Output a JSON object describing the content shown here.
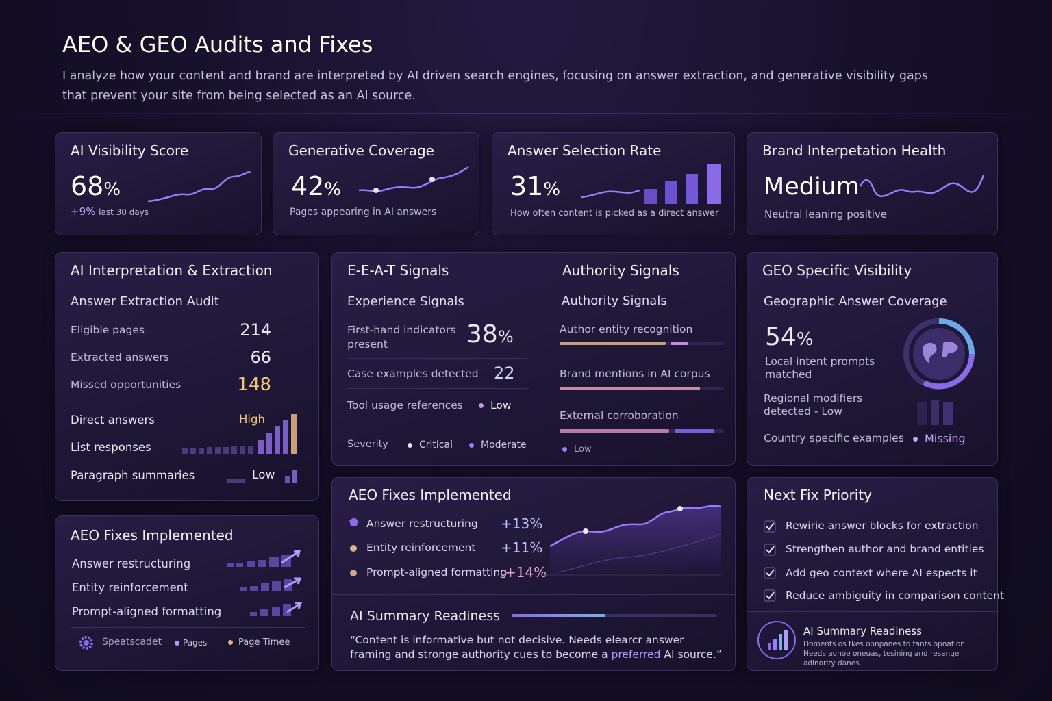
{
  "header": {
    "title": "AEO & GEO Audits and Fixes",
    "description": "I analyze how your content and brand are interpreted by AI driven search engines, focusing on answer extraction, and generative visibility gaps that prevent your site from being selected as an AI source."
  },
  "kpis": [
    {
      "title": "AI Visibility Score",
      "value": "68",
      "unit": "%",
      "change": "+9%",
      "caption": "last 30 days"
    },
    {
      "title": "Generative Coverage",
      "value": "42",
      "unit": "%",
      "caption": "Pages appearing in AI answers"
    },
    {
      "title": "Answer Selection Rate",
      "value": "31",
      "unit": "%",
      "caption": "How often content is picked as a direct answer"
    },
    {
      "title": "Brand Interpetation Health",
      "value": "Medium",
      "caption": "Neutral leaning positive"
    }
  ],
  "interpretation": {
    "title": "AI Interpretation & Extraction",
    "subtitle": "Answer Extraction Audit",
    "metrics": [
      {
        "label": "Eligible pages",
        "value": "214"
      },
      {
        "label": "Extracted answers",
        "value": "66"
      },
      {
        "label": "Missed opportunities",
        "value": "148"
      }
    ],
    "formats": [
      {
        "label": "Direct answers",
        "level": "High"
      },
      {
        "label": "List responses"
      },
      {
        "label": "Paragraph summaries",
        "level": "Low"
      }
    ]
  },
  "eeat": {
    "title": "E-E-A-T Signals",
    "subtitle": "Experience Signals",
    "metrics": [
      {
        "label": "First-hand indicators present",
        "value": "38",
        "unit": "%"
      },
      {
        "label": "Case examples detected",
        "value": "22"
      },
      {
        "label": "Tool usage references",
        "level": "Low"
      }
    ],
    "severity": {
      "label": "Severity",
      "items": [
        "Critical",
        "Moderate"
      ]
    }
  },
  "authority": {
    "title": "Authority Signals",
    "subtitle": "Authority Signals",
    "items": [
      "Author entity recognition",
      "Brand mentions in AI corpus",
      "External corroboration"
    ],
    "legend": "Low"
  },
  "geo": {
    "title": "GEO Specific Visibility",
    "subtitle": "Geographic Answer Coverage",
    "value": "54",
    "unit": "%",
    "caption": "Local intent prompts matched",
    "regional": "Regional modifiers detected - Low",
    "country": {
      "label": "Country specific examples",
      "status": "Missing"
    }
  },
  "fixes_summary": {
    "title": "AEO Fixes Implemented",
    "items": [
      "Answer restructuring",
      "Entity reinforcement",
      "Prompt-aligned formatting"
    ],
    "legend": [
      "Speatscadet",
      "Pages",
      "Page Timee"
    ]
  },
  "fixes": {
    "title": "AEO Fixes Implemented",
    "items": [
      {
        "label": "Answer restructuring",
        "change": "+13%"
      },
      {
        "label": "Entity reinforcement",
        "change": "+11%"
      },
      {
        "label": "Prompt-aligned formatting",
        "change": "+14%"
      }
    ]
  },
  "readiness": {
    "title": "AI Summary Readiness",
    "quote_start": "“Content is informative but not decisive. Needs elearcr answer framing and stronge authority cues to become a ",
    "highlight": "preferred",
    "quote_end": " AI source.”"
  },
  "next_fix": {
    "title": "Next Fix Priority",
    "items": [
      "Rewirie answer blocks for extraction",
      "Strengthen author and brand entities",
      "Add geo context where AI espects it",
      "Reduce ambiguity in comparison content"
    ],
    "summary_title": "AI Summary Readiness",
    "summary_text": "Doments os tkes oonpanes to tants opnation. Needs aonoe oneuas, tesining and resange adinority danes."
  }
}
